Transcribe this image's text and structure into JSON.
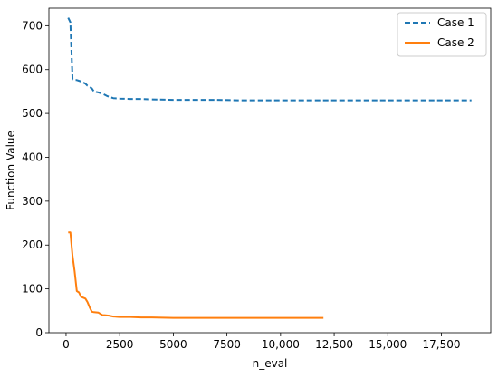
{
  "chart_data": {
    "type": "line",
    "title": "",
    "xlabel": "n_eval",
    "ylabel": "Function Value",
    "xlim": [
      -800,
      19800
    ],
    "ylim": [
      0,
      740
    ],
    "x_ticks": [
      0,
      2500,
      5000,
      7500,
      10000,
      12500,
      15000,
      17500
    ],
    "x_tick_labels": [
      "0",
      "2500",
      "5000",
      "7500",
      "10,000",
      "12,500",
      "15,000",
      "17,500"
    ],
    "y_ticks": [
      0,
      100,
      200,
      300,
      400,
      500,
      600,
      700
    ],
    "y_tick_labels": [
      "0",
      "100",
      "200",
      "300",
      "400",
      "500",
      "600",
      "700"
    ],
    "grid": false,
    "legend_position": "top-right",
    "series": [
      {
        "name": "Case 1",
        "color": "#1f77b4",
        "style": "dashed",
        "x": [
          100,
          200,
          300,
          400,
          500,
          700,
          900,
          1000,
          1200,
          1300,
          1500,
          1700,
          1900,
          2000,
          2200,
          2500,
          3000,
          3500,
          4000,
          5000,
          6000,
          7000,
          8000,
          10000,
          12000,
          14000,
          16000,
          17000,
          18900
        ],
        "y": [
          718,
          708,
          578,
          576,
          576,
          573,
          568,
          563,
          557,
          550,
          548,
          545,
          540,
          538,
          535,
          534,
          533,
          533,
          532,
          531,
          531,
          531,
          530,
          530,
          530,
          530,
          530,
          530,
          530
        ]
      },
      {
        "name": "Case 2",
        "color": "#ff7f0e",
        "style": "solid",
        "x": [
          100,
          200,
          300,
          400,
          500,
          600,
          700,
          900,
          1000,
          1100,
          1200,
          1300,
          1500,
          1700,
          1800,
          2000,
          2200,
          2500,
          3000,
          3500,
          4000,
          5000,
          6000,
          7000,
          8000,
          9000,
          10000,
          11000,
          12000
        ],
        "y": [
          229,
          229,
          175,
          140,
          95,
          92,
          82,
          78,
          70,
          58,
          48,
          47,
          46,
          40,
          40,
          39,
          37,
          36,
          36,
          35,
          35,
          34,
          34,
          34,
          34,
          34,
          34,
          34,
          34
        ]
      }
    ]
  }
}
